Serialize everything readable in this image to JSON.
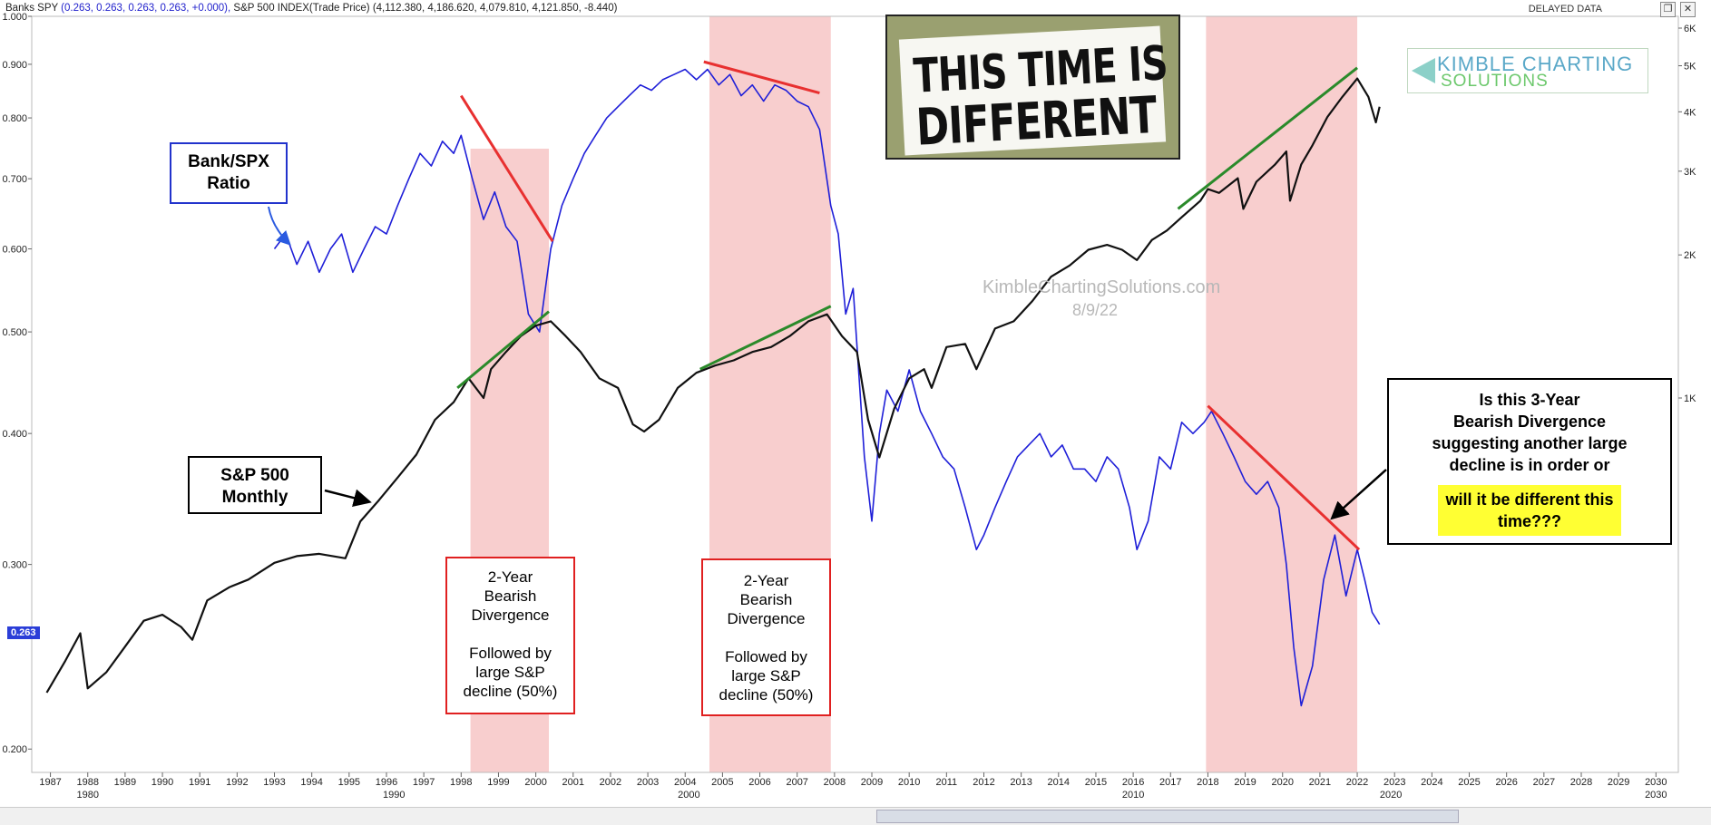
{
  "header": {
    "label_banks": "Banks SPY",
    "banks_values": "(0.263, 0.263, 0.263, 0.263, +0.000),",
    "label_spx": "S&P 500 INDEX(Trade Price)",
    "spx_values": "(4,112.380, 4,186.620, 4,079.810, 4,121.850, -8.440)",
    "delayed": "DELAYED DATA"
  },
  "price_tag": "0.263",
  "annotations": {
    "ratio_label": "Bank/SPX\nRatio",
    "spx_label": "S&P 500\nMonthly",
    "div1": "2-Year\nBearish\nDivergence\n\nFollowed by\nlarge S&P\ndecline (50%)",
    "div2": "2-Year\nBearish\nDivergence\n\nFollowed by\nlarge S&P\ndecline (50%)",
    "question": "Is this 3-Year\nBearish Divergence\nsuggesting another large\ndecline is in order or",
    "question_highlight": "will it be different this\ntime???",
    "title_line1": "THIS TIME IS",
    "title_line2": "DIFFERENT",
    "logo_line1": "KIMBLE CHARTING",
    "logo_line2": "SOLUTIONS",
    "watermark": "KimbleChartingSolutions.com",
    "date": "8/9/22"
  },
  "colors": {
    "ratio": "#1f1fd8",
    "spx": "#111111",
    "shade": "#f7c6c6",
    "red_line": "#e83030",
    "green_line": "#2a8a2a"
  },
  "chart_data": {
    "type": "line",
    "title": "",
    "xlabel": "",
    "ylabel": "",
    "x_ticks": [
      "1987",
      "1988",
      "1989",
      "1990",
      "1991",
      "1992",
      "1993",
      "1994",
      "1995",
      "1996",
      "1997",
      "1998",
      "1999",
      "2000",
      "2001",
      "2002",
      "2003",
      "2004",
      "2005",
      "2006",
      "2007",
      "2008",
      "2009",
      "2010",
      "2011",
      "2012",
      "2013",
      "2014",
      "2015",
      "2016",
      "2017",
      "2018",
      "2019",
      "2020",
      "2021",
      "2022",
      "2023",
      "2024",
      "2025",
      "2026",
      "2027",
      "2028",
      "2029",
      "2030"
    ],
    "x_decade_labels": [
      "1980",
      "1990",
      "2000",
      "2010",
      "2020",
      "2030"
    ],
    "left_axis": {
      "scale": "log",
      "ylim": [
        0.19,
        1.0
      ],
      "ticks": [
        "0.200",
        "0.300",
        "0.400",
        "0.500",
        "0.600",
        "0.700",
        "0.800",
        "0.900",
        "1.000"
      ]
    },
    "right_axis": {
      "scale": "log",
      "ticks": [
        "1K",
        "2K",
        "3K",
        "4K",
        "5K",
        "6K"
      ]
    },
    "shaded_periods": [
      [
        1998.25,
        2000.35
      ],
      [
        2004.65,
        2007.9
      ],
      [
        2017.95,
        2022.0
      ]
    ],
    "series": [
      {
        "name": "Banks SPY",
        "axis": "left",
        "x": [
          1993.0,
          1993.3,
          1993.6,
          1993.9,
          1994.2,
          1994.5,
          1994.8,
          1995.1,
          1995.4,
          1995.7,
          1996.0,
          1996.3,
          1996.6,
          1996.9,
          1997.2,
          1997.5,
          1997.8,
          1998.0,
          1998.3,
          1998.6,
          1998.9,
          1999.2,
          1999.5,
          1999.8,
          2000.1,
          2000.4,
          2000.7,
          2001.0,
          2001.3,
          2001.6,
          2001.9,
          2002.2,
          2002.5,
          2002.8,
          2003.1,
          2003.4,
          2003.7,
          2004.0,
          2004.3,
          2004.6,
          2004.9,
          2005.2,
          2005.5,
          2005.8,
          2006.1,
          2006.4,
          2006.7,
          2007.0,
          2007.3,
          2007.6,
          2007.9,
          2008.1,
          2008.3,
          2008.5,
          2008.8,
          2009.0,
          2009.2,
          2009.4,
          2009.7,
          2010.0,
          2010.3,
          2010.6,
          2010.9,
          2011.2,
          2011.5,
          2011.8,
          2012.0,
          2012.3,
          2012.6,
          2012.9,
          2013.2,
          2013.5,
          2013.8,
          2014.1,
          2014.4,
          2014.7,
          2015.0,
          2015.3,
          2015.6,
          2015.9,
          2016.1,
          2016.4,
          2016.7,
          2017.0,
          2017.3,
          2017.6,
          2017.9,
          2018.1,
          2018.4,
          2018.7,
          2019.0,
          2019.3,
          2019.6,
          2019.9,
          2020.1,
          2020.3,
          2020.5,
          2020.8,
          2021.1,
          2021.4,
          2021.7,
          2022.0,
          2022.2,
          2022.4,
          2022.6
        ],
        "values": [
          0.6,
          0.62,
          0.58,
          0.61,
          0.57,
          0.6,
          0.62,
          0.57,
          0.6,
          0.63,
          0.62,
          0.66,
          0.7,
          0.74,
          0.72,
          0.76,
          0.74,
          0.77,
          0.7,
          0.64,
          0.68,
          0.63,
          0.61,
          0.52,
          0.5,
          0.6,
          0.66,
          0.7,
          0.74,
          0.77,
          0.8,
          0.82,
          0.84,
          0.86,
          0.85,
          0.87,
          0.88,
          0.89,
          0.87,
          0.89,
          0.86,
          0.88,
          0.84,
          0.86,
          0.83,
          0.86,
          0.85,
          0.83,
          0.82,
          0.78,
          0.66,
          0.62,
          0.52,
          0.55,
          0.38,
          0.33,
          0.4,
          0.44,
          0.42,
          0.46,
          0.42,
          0.4,
          0.38,
          0.37,
          0.34,
          0.31,
          0.32,
          0.34,
          0.36,
          0.38,
          0.39,
          0.4,
          0.38,
          0.39,
          0.37,
          0.37,
          0.36,
          0.38,
          0.37,
          0.34,
          0.31,
          0.33,
          0.38,
          0.37,
          0.41,
          0.4,
          0.41,
          0.42,
          0.4,
          0.38,
          0.36,
          0.35,
          0.36,
          0.34,
          0.3,
          0.25,
          0.22,
          0.24,
          0.29,
          0.32,
          0.28,
          0.31,
          0.29,
          0.27,
          0.263
        ]
      },
      {
        "name": "S&P 500 INDEX",
        "axis": "right",
        "x": [
          1986.9,
          1987.4,
          1987.8,
          1988.0,
          1988.5,
          1989.0,
          1989.5,
          1990.0,
          1990.5,
          1990.8,
          1991.2,
          1991.8,
          1992.3,
          1993.0,
          1993.6,
          1994.2,
          1994.9,
          1995.3,
          1995.8,
          1996.3,
          1996.8,
          1997.3,
          1997.8,
          1998.2,
          1998.6,
          1998.8,
          1999.2,
          1999.6,
          2000.0,
          2000.4,
          2000.8,
          2001.2,
          2001.7,
          2002.2,
          2002.6,
          2002.9,
          2003.3,
          2003.8,
          2004.3,
          2004.8,
          2005.3,
          2005.8,
          2006.3,
          2006.8,
          2007.3,
          2007.8,
          2008.2,
          2008.6,
          2008.9,
          2009.2,
          2009.6,
          2010.0,
          2010.4,
          2010.6,
          2011.0,
          2011.5,
          2011.8,
          2012.3,
          2012.8,
          2013.3,
          2013.8,
          2014.3,
          2014.8,
          2015.3,
          2015.7,
          2016.1,
          2016.5,
          2016.9,
          2017.3,
          2017.8,
          2018.0,
          2018.3,
          2018.8,
          2018.95,
          2019.3,
          2019.8,
          2020.1,
          2020.2,
          2020.5,
          2020.8,
          2021.2,
          2021.6,
          2022.0,
          2022.3,
          2022.5,
          2022.6
        ],
        "values": [
          240,
          280,
          320,
          245,
          265,
          300,
          340,
          350,
          330,
          310,
          375,
          400,
          415,
          450,
          465,
          470,
          460,
          550,
          610,
          680,
          760,
          900,
          980,
          1100,
          1000,
          1150,
          1250,
          1350,
          1420,
          1450,
          1350,
          1250,
          1100,
          1050,
          880,
          850,
          900,
          1050,
          1130,
          1170,
          1200,
          1250,
          1280,
          1350,
          1450,
          1500,
          1350,
          1250,
          900,
          750,
          950,
          1100,
          1150,
          1050,
          1280,
          1300,
          1150,
          1400,
          1450,
          1600,
          1800,
          1900,
          2050,
          2100,
          2050,
          1950,
          2150,
          2250,
          2400,
          2600,
          2750,
          2700,
          2900,
          2500,
          2850,
          3100,
          3300,
          2600,
          3100,
          3400,
          3900,
          4300,
          4700,
          4300,
          3800,
          4100
        ]
      }
    ],
    "annotations": [
      {
        "type": "red_trendline",
        "x": [
          1998.0,
          2000.45
        ],
        "y": [
          0.84,
          0.61
        ]
      },
      {
        "type": "green_trendline",
        "x": [
          1997.9,
          2000.35
        ],
        "y": [
          1050,
          1520
        ]
      },
      {
        "type": "red_trendline",
        "x": [
          2004.5,
          2007.6
        ],
        "y": [
          0.905,
          0.845
        ]
      },
      {
        "type": "green_trendline",
        "x": [
          2004.4,
          2007.9
        ],
        "y": [
          1150,
          1560
        ]
      },
      {
        "type": "green_trendline",
        "x": [
          2017.2,
          2022.0
        ],
        "y": [
          2500,
          4950
        ]
      },
      {
        "type": "red_trendline",
        "x": [
          2018.0,
          2022.05
        ],
        "y": [
          0.425,
          0.31
        ]
      }
    ]
  }
}
